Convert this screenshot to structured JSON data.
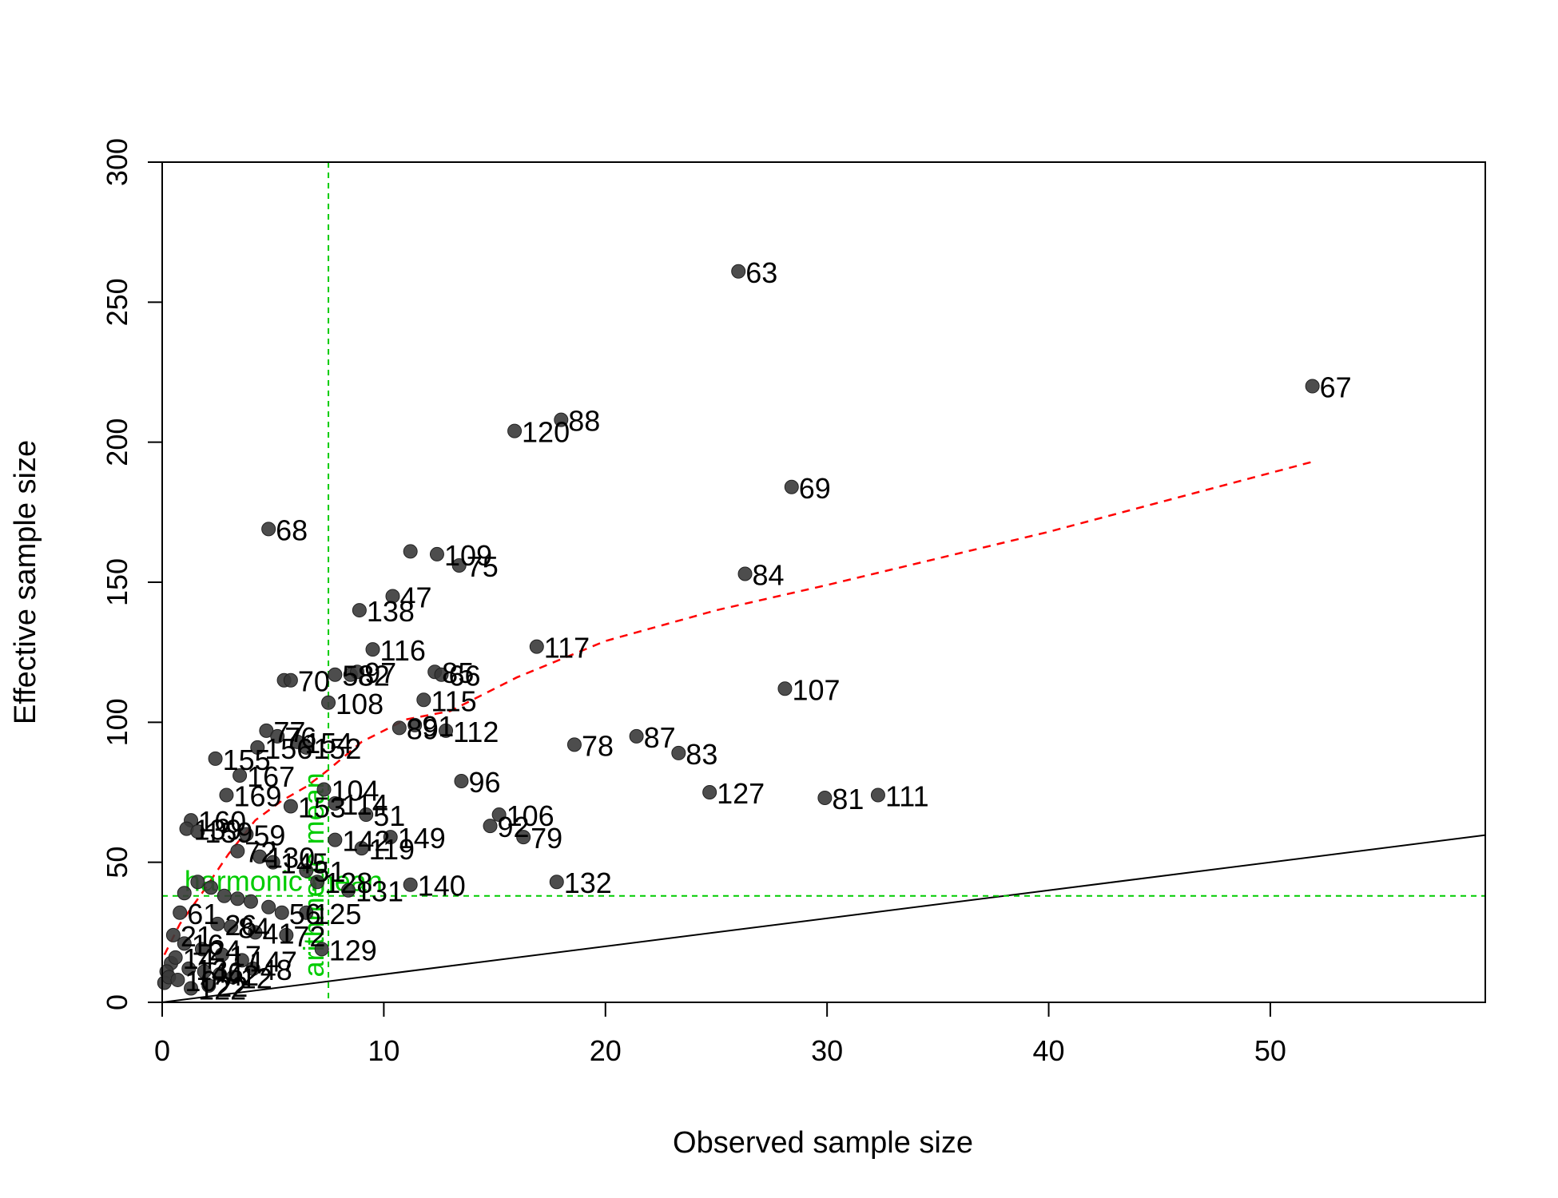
{
  "chart_data": {
    "type": "scatter",
    "title": "",
    "xlabel": "Observed sample size",
    "ylabel": "Effective sample size",
    "xlim": [
      0,
      59.7
    ],
    "ylim": [
      0,
      300
    ],
    "xticks": [
      0,
      10,
      20,
      30,
      40,
      50
    ],
    "yticks": [
      0,
      50,
      100,
      150,
      200,
      250,
      300
    ],
    "grid": false,
    "legend": "none",
    "colors": {
      "points": "#3a3a3a",
      "identity_line": "#000000",
      "smoother": "#ff0000",
      "reference": "#00cc00"
    },
    "points": [
      {
        "x": 26.0,
        "y": 261,
        "label": "63"
      },
      {
        "x": 51.9,
        "y": 220,
        "label": "67"
      },
      {
        "x": 18.0,
        "y": 208,
        "label": "88"
      },
      {
        "x": 15.9,
        "y": 204,
        "label": "120"
      },
      {
        "x": 28.4,
        "y": 184,
        "label": "69"
      },
      {
        "x": 4.8,
        "y": 169,
        "label": "68"
      },
      {
        "x": 11.2,
        "y": 161,
        "label": ""
      },
      {
        "x": 12.4,
        "y": 160,
        "label": "109"
      },
      {
        "x": 13.4,
        "y": 156,
        "label": "75"
      },
      {
        "x": 26.3,
        "y": 153,
        "label": "84"
      },
      {
        "x": 10.4,
        "y": 145,
        "label": "47"
      },
      {
        "x": 8.9,
        "y": 140,
        "label": "138"
      },
      {
        "x": 16.9,
        "y": 127,
        "label": "117"
      },
      {
        "x": 9.5,
        "y": 126,
        "label": "116"
      },
      {
        "x": 12.3,
        "y": 118,
        "label": "85"
      },
      {
        "x": 12.6,
        "y": 117,
        "label": "66"
      },
      {
        "x": 5.5,
        "y": 115,
        "label": ""
      },
      {
        "x": 5.8,
        "y": 115,
        "label": "70"
      },
      {
        "x": 7.8,
        "y": 117,
        "label": "58"
      },
      {
        "x": 8.5,
        "y": 117,
        "label": "82"
      },
      {
        "x": 8.8,
        "y": 118,
        "label": "97"
      },
      {
        "x": 11.8,
        "y": 108,
        "label": "115"
      },
      {
        "x": 7.5,
        "y": 107,
        "label": "108"
      },
      {
        "x": 28.1,
        "y": 112,
        "label": "107"
      },
      {
        "x": 10.7,
        "y": 98,
        "label": "89"
      },
      {
        "x": 11.4,
        "y": 99,
        "label": "91"
      },
      {
        "x": 12.8,
        "y": 97,
        "label": "112"
      },
      {
        "x": 4.7,
        "y": 97,
        "label": "77"
      },
      {
        "x": 5.2,
        "y": 95,
        "label": "76"
      },
      {
        "x": 6.1,
        "y": 93,
        "label": "154"
      },
      {
        "x": 6.5,
        "y": 91,
        "label": "152"
      },
      {
        "x": 4.3,
        "y": 91,
        "label": "156"
      },
      {
        "x": 2.4,
        "y": 87,
        "label": "155"
      },
      {
        "x": 18.6,
        "y": 92,
        "label": "78"
      },
      {
        "x": 21.4,
        "y": 95,
        "label": "87"
      },
      {
        "x": 23.3,
        "y": 89,
        "label": "83"
      },
      {
        "x": 3.5,
        "y": 81,
        "label": "167"
      },
      {
        "x": 13.5,
        "y": 79,
        "label": "96"
      },
      {
        "x": 7.3,
        "y": 76,
        "label": "104"
      },
      {
        "x": 2.9,
        "y": 74,
        "label": "169"
      },
      {
        "x": 24.7,
        "y": 75,
        "label": "127"
      },
      {
        "x": 29.9,
        "y": 73,
        "label": "81"
      },
      {
        "x": 32.3,
        "y": 74,
        "label": "111"
      },
      {
        "x": 7.8,
        "y": 71,
        "label": "114"
      },
      {
        "x": 5.8,
        "y": 70,
        "label": "153"
      },
      {
        "x": 9.2,
        "y": 67,
        "label": "51"
      },
      {
        "x": 15.2,
        "y": 67,
        "label": "106"
      },
      {
        "x": 1.3,
        "y": 65,
        "label": "160"
      },
      {
        "x": 1.1,
        "y": 62,
        "label": "139"
      },
      {
        "x": 1.6,
        "y": 61,
        "label": "159"
      },
      {
        "x": 3.8,
        "y": 60,
        "label": "59"
      },
      {
        "x": 14.8,
        "y": 63,
        "label": "92"
      },
      {
        "x": 16.3,
        "y": 59,
        "label": "79"
      },
      {
        "x": 7.8,
        "y": 58,
        "label": "142"
      },
      {
        "x": 9.0,
        "y": 55,
        "label": "119"
      },
      {
        "x": 10.3,
        "y": 59,
        "label": "149"
      },
      {
        "x": 3.4,
        "y": 54,
        "label": "72"
      },
      {
        "x": 4.4,
        "y": 52,
        "label": "130"
      },
      {
        "x": 5.0,
        "y": 50,
        "label": "145"
      },
      {
        "x": 6.5,
        "y": 47,
        "label": "51"
      },
      {
        "x": 11.2,
        "y": 42,
        "label": "140"
      },
      {
        "x": 17.8,
        "y": 43,
        "label": "132"
      },
      {
        "x": 7.0,
        "y": 43,
        "label": "128"
      },
      {
        "x": 8.4,
        "y": 40,
        "label": "131"
      },
      {
        "x": 1.0,
        "y": 39,
        "label": ""
      },
      {
        "x": 1.6,
        "y": 43,
        "label": ""
      },
      {
        "x": 2.2,
        "y": 41,
        "label": ""
      },
      {
        "x": 2.8,
        "y": 38,
        "label": ""
      },
      {
        "x": 3.4,
        "y": 37,
        "label": ""
      },
      {
        "x": 4.0,
        "y": 36,
        "label": ""
      },
      {
        "x": 4.8,
        "y": 34,
        "label": ""
      },
      {
        "x": 5.4,
        "y": 32,
        "label": "56"
      },
      {
        "x": 6.5,
        "y": 32,
        "label": "125"
      },
      {
        "x": 0.8,
        "y": 32,
        "label": "61"
      },
      {
        "x": 2.5,
        "y": 28,
        "label": "26"
      },
      {
        "x": 3.1,
        "y": 27,
        "label": "84"
      },
      {
        "x": 4.2,
        "y": 25,
        "label": "41"
      },
      {
        "x": 5.6,
        "y": 24,
        "label": "72"
      },
      {
        "x": 7.2,
        "y": 19,
        "label": "129"
      },
      {
        "x": 0.5,
        "y": 24,
        "label": "21"
      },
      {
        "x": 1.0,
        "y": 21,
        "label": "16"
      },
      {
        "x": 1.8,
        "y": 19,
        "label": "24"
      },
      {
        "x": 2.7,
        "y": 17,
        "label": "17"
      },
      {
        "x": 3.6,
        "y": 15,
        "label": "147"
      },
      {
        "x": 4.1,
        "y": 12,
        "label": "48"
      },
      {
        "x": 0.4,
        "y": 14,
        "label": ""
      },
      {
        "x": 0.6,
        "y": 16,
        "label": "14"
      },
      {
        "x": 1.2,
        "y": 12,
        "label": "13"
      },
      {
        "x": 1.9,
        "y": 11,
        "label": "46"
      },
      {
        "x": 2.6,
        "y": 10,
        "label": "42"
      },
      {
        "x": 3.2,
        "y": 9,
        "label": "12"
      },
      {
        "x": 0.2,
        "y": 11,
        "label": ""
      },
      {
        "x": 0.1,
        "y": 7,
        "label": ""
      },
      {
        "x": 0.3,
        "y": 9,
        "label": ""
      },
      {
        "x": 0.7,
        "y": 8,
        "label": "10"
      },
      {
        "x": 1.3,
        "y": 5,
        "label": "122"
      },
      {
        "x": 2.1,
        "y": 6,
        "label": "22"
      }
    ],
    "identity_line": {
      "x": [
        0,
        59.7
      ],
      "y": [
        0,
        59.7
      ]
    },
    "smoother": {
      "x": [
        0.1,
        0.8,
        1.8,
        3.0,
        4.2,
        5.4,
        6.5,
        7.5,
        9.0,
        11.0,
        13.0,
        16.0,
        20.0,
        25.0,
        30.0,
        40.0,
        51.9
      ],
      "y": [
        17,
        28,
        39,
        53,
        65,
        72,
        77,
        83,
        93,
        101,
        104,
        116,
        129,
        140,
        149,
        168,
        193
      ]
    },
    "reference_lines": [
      {
        "orientation": "vertical",
        "value": 7.5,
        "label": "arithmetic mean"
      },
      {
        "orientation": "horizontal",
        "value": 38,
        "label": "harmonic mean"
      }
    ]
  }
}
